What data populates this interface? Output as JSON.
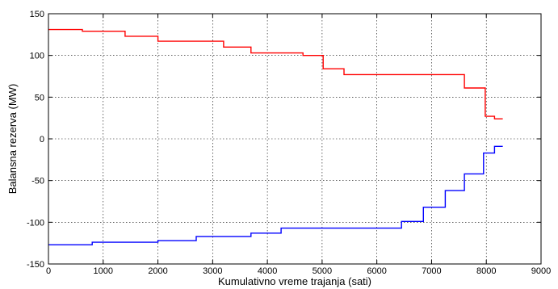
{
  "chart_data": {
    "type": "line",
    "title": "",
    "xlabel": "Kumulativno vreme trajanja (sati)",
    "ylabel": "Balansna rezerva (MW)",
    "xlim": [
      0,
      9000
    ],
    "ylim": [
      -150,
      150
    ],
    "xticks": [
      0,
      1000,
      2000,
      3000,
      4000,
      5000,
      6000,
      7000,
      8000,
      9000
    ],
    "yticks": [
      -150,
      -100,
      -50,
      0,
      50,
      100,
      150
    ],
    "grid": true,
    "legend": "none",
    "series": [
      {
        "color": "#ff0000",
        "shape": "step",
        "points": [
          [
            0,
            131
          ],
          [
            620,
            131
          ],
          [
            620,
            129
          ],
          [
            1400,
            129
          ],
          [
            1400,
            123
          ],
          [
            2000,
            123
          ],
          [
            2000,
            117
          ],
          [
            3200,
            117
          ],
          [
            3200,
            110
          ],
          [
            3700,
            110
          ],
          [
            3700,
            103
          ],
          [
            4650,
            103
          ],
          [
            4650,
            100
          ],
          [
            5020,
            100
          ],
          [
            5020,
            84
          ],
          [
            5400,
            84
          ],
          [
            5400,
            77
          ],
          [
            7600,
            77
          ],
          [
            7600,
            61
          ],
          [
            7980,
            61
          ],
          [
            7980,
            27
          ],
          [
            8150,
            27
          ],
          [
            8150,
            24
          ],
          [
            8300,
            24
          ]
        ]
      },
      {
        "color": "#0000ff",
        "shape": "step",
        "points": [
          [
            0,
            -127
          ],
          [
            800,
            -127
          ],
          [
            800,
            -124
          ],
          [
            2000,
            -124
          ],
          [
            2000,
            -122
          ],
          [
            2700,
            -122
          ],
          [
            2700,
            -117
          ],
          [
            3700,
            -117
          ],
          [
            3700,
            -113
          ],
          [
            4250,
            -113
          ],
          [
            4250,
            -107
          ],
          [
            6450,
            -107
          ],
          [
            6450,
            -99
          ],
          [
            6850,
            -99
          ],
          [
            6850,
            -82
          ],
          [
            7250,
            -82
          ],
          [
            7250,
            -62
          ],
          [
            7600,
            -62
          ],
          [
            7600,
            -42
          ],
          [
            7950,
            -42
          ],
          [
            7950,
            -17
          ],
          [
            8150,
            -17
          ],
          [
            8150,
            -9
          ],
          [
            8300,
            -9
          ]
        ]
      }
    ]
  }
}
